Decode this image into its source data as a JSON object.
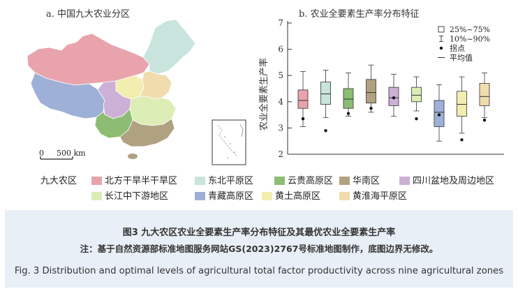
{
  "panel_a": {
    "title": "a. 中国九大农业分区",
    "scale_label": "500 km",
    "scale_zero": "0"
  },
  "legend": {
    "heading": "九大农区",
    "zones": [
      {
        "name": "北方干旱半干旱区",
        "color": "#e8a3ad"
      },
      {
        "name": "东北平原区",
        "color": "#c8e4dc"
      },
      {
        "name": "云贵高原区",
        "color": "#8cbd73"
      },
      {
        "name": "华南区",
        "color": "#b0a281"
      },
      {
        "name": "四川盆地及周边地区",
        "color": "#cdb0d6"
      },
      {
        "name": "长江中下游地区",
        "color": "#dcedb6"
      },
      {
        "name": "青藏高原区",
        "color": "#9fb0d8"
      },
      {
        "name": "黄土高原区",
        "color": "#f1eeb0"
      },
      {
        "name": "黄淮海平原区",
        "color": "#f0dcac"
      }
    ]
  },
  "chart_data": {
    "type": "box",
    "title": "b. 农业全要素生产率分布特征",
    "ylabel": "农业全要素生产率",
    "ylim": [
      2,
      7
    ],
    "yticks": [
      "2",
      "3",
      "4",
      "5",
      "6",
      "7"
    ],
    "legend": [
      {
        "symbol": "box",
        "label": "25%~75%"
      },
      {
        "symbol": "whisker",
        "label": "10%~90%"
      },
      {
        "symbol": "dot",
        "label": "拐点"
      },
      {
        "symbol": "line",
        "label": "平均值"
      }
    ],
    "boxes": [
      {
        "zone": "北方干旱半干旱区",
        "color": "#e8a3ad",
        "p10": 3.05,
        "q1": 3.75,
        "median": 4.05,
        "mean": 4.05,
        "q3": 4.45,
        "p90": 5.15,
        "point": 3.35
      },
      {
        "zone": "东北平原区",
        "color": "#c8e4dc",
        "p10": 3.4,
        "q1": 3.9,
        "median": 4.3,
        "mean": 4.3,
        "q3": 4.75,
        "p90": 5.2,
        "point": 2.9
      },
      {
        "zone": "云贵高原区",
        "color": "#8cbd73",
        "p10": 3.45,
        "q1": 3.75,
        "median": 4.1,
        "mean": 4.05,
        "q3": 4.5,
        "p90": 5.1,
        "point": 3.55
      },
      {
        "zone": "华南区",
        "color": "#b0a281",
        "p10": 3.6,
        "q1": 3.95,
        "median": 4.35,
        "mean": 4.4,
        "q3": 4.85,
        "p90": 5.4,
        "point": 3.75
      },
      {
        "zone": "四川盆地及周边地区",
        "color": "#cdb0d6",
        "p10": 3.45,
        "q1": 3.85,
        "median": 4.15,
        "mean": 4.2,
        "q3": 4.55,
        "p90": 5.05,
        "point": 4.15
      },
      {
        "zone": "长江中下游地区",
        "color": "#dcedb6",
        "p10": 3.65,
        "q1": 4.0,
        "median": 4.25,
        "mean": 4.25,
        "q3": 4.55,
        "p90": 4.95,
        "point": 3.35
      },
      {
        "zone": "青藏高原区",
        "color": "#9fb0d8",
        "p10": 2.5,
        "q1": 3.05,
        "median": 3.6,
        "mean": 3.55,
        "q3": 4.05,
        "p90": 4.65,
        "point": 3.5
      },
      {
        "zone": "黄土高原区",
        "color": "#f1eeb0",
        "p10": 2.8,
        "q1": 3.45,
        "median": 3.9,
        "mean": 3.9,
        "q3": 4.4,
        "p90": 4.95,
        "point": 2.55
      },
      {
        "zone": "黄淮海平原区",
        "color": "#f0dcac",
        "p10": 3.4,
        "q1": 3.85,
        "median": 4.2,
        "mean": 4.2,
        "q3": 4.7,
        "p90": 5.1,
        "point": 3.3
      }
    ]
  },
  "caption": {
    "title": "图3 九大农区农业全要素生产率分布特征及其最优农业全要素生产率",
    "note": "注：基于自然资源部标准地图服务网站GS(2023)2767号标准地图制作，底图边界无修改。",
    "english": "Fig. 3 Distribution and optimal levels of agricultural total factor productivity across nine agricultural zones"
  }
}
